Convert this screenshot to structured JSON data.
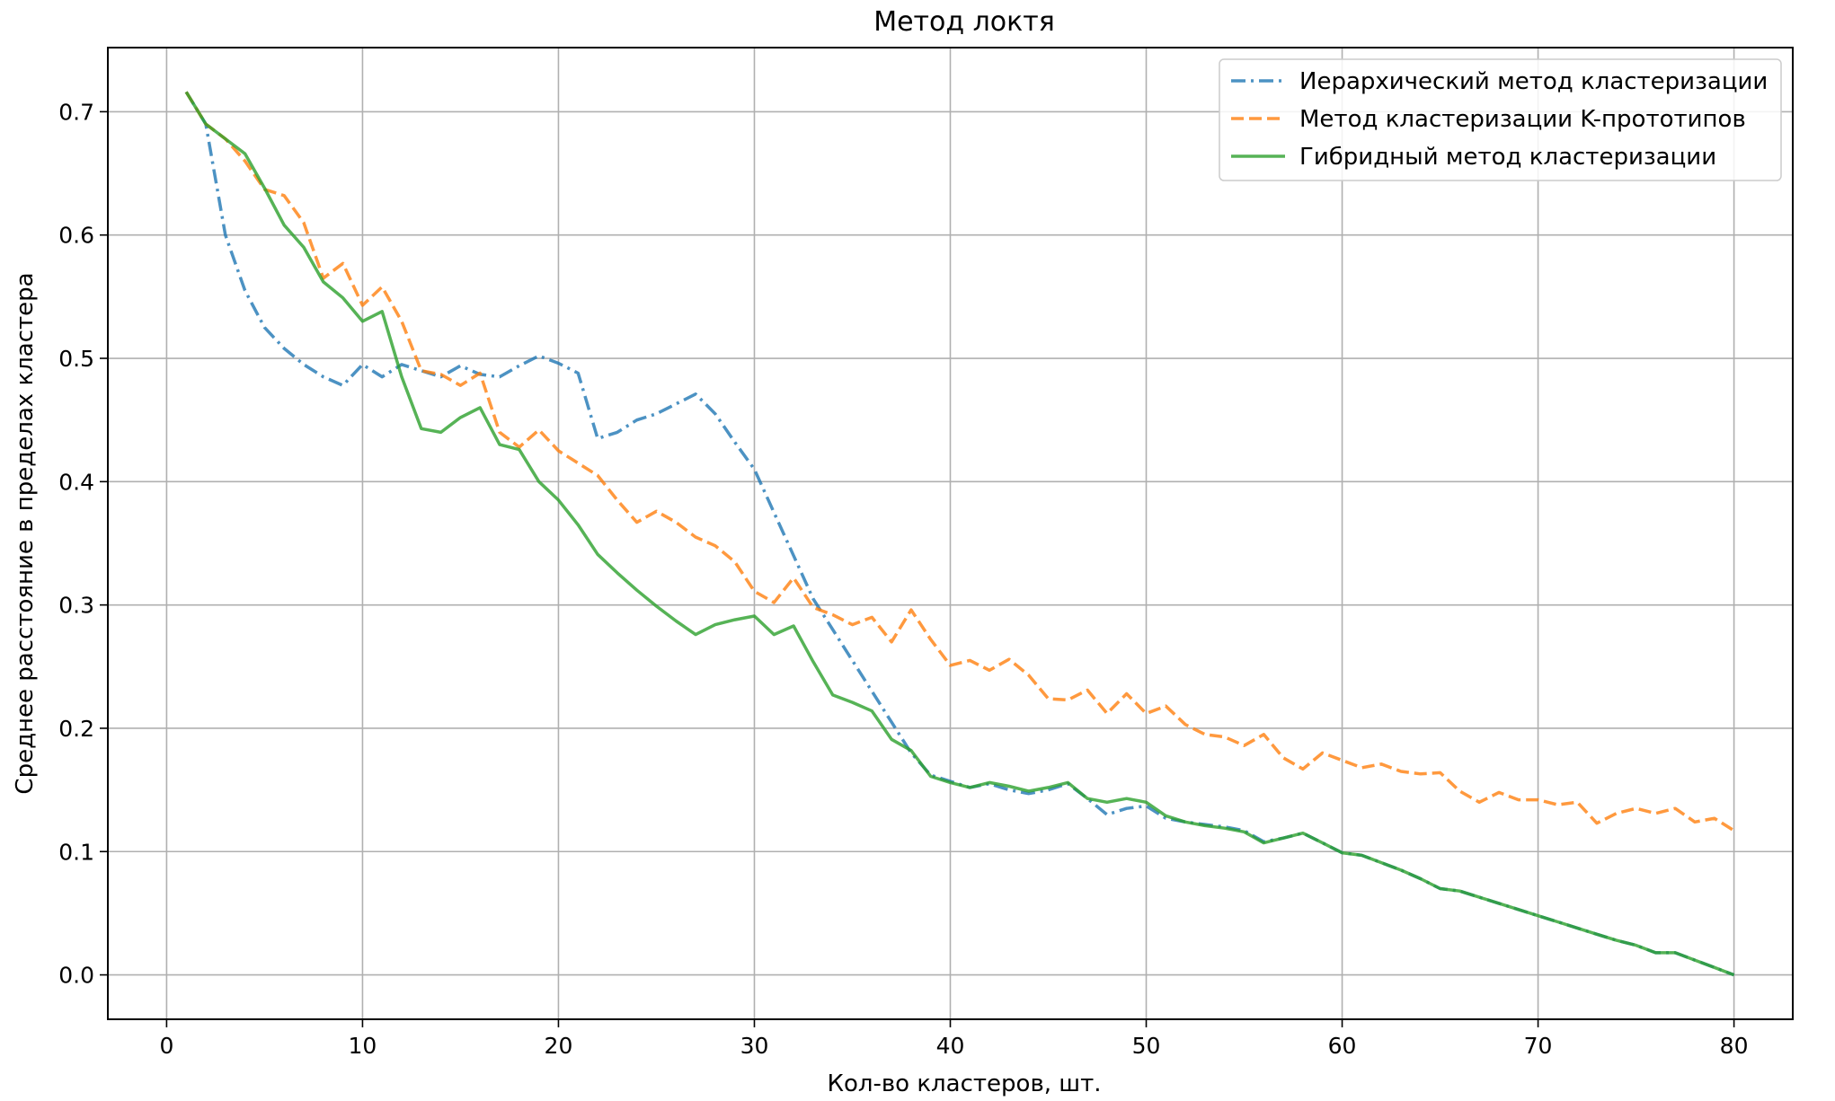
{
  "chart_data": {
    "type": "line",
    "title": "Метод локтя",
    "xlabel": "Кол-во кластеров, шт.",
    "ylabel": "Среднее расстояние в пределах кластера",
    "xlim": [
      -3,
      83
    ],
    "ylim": [
      -0.036,
      0.752
    ],
    "xticks": [
      0,
      10,
      20,
      30,
      40,
      50,
      60,
      70,
      80
    ],
    "yticks": [
      0.0,
      0.1,
      0.2,
      0.3,
      0.4,
      0.5,
      0.6,
      0.7
    ],
    "grid": true,
    "legend_position": "top-right",
    "series": [
      {
        "name": "Иерархический метод кластеризации",
        "color": "#1f77b4",
        "style": "dashdot",
        "x": [
          1,
          2,
          3,
          4,
          5,
          6,
          7,
          8,
          9,
          10,
          11,
          12,
          13,
          14,
          15,
          16,
          17,
          18,
          19,
          20,
          21,
          22,
          23,
          24,
          25,
          26,
          27,
          28,
          29,
          30,
          31,
          32,
          33,
          34,
          35,
          36,
          37,
          38,
          39,
          40,
          41,
          42,
          43,
          44,
          45,
          46,
          47,
          48,
          49,
          50,
          51,
          52,
          53,
          54,
          55,
          56,
          57,
          58,
          59,
          60,
          61,
          62,
          63,
          64,
          65,
          66,
          67,
          68,
          69,
          70,
          71,
          72,
          73,
          74,
          75,
          76,
          77,
          78,
          79,
          80
        ],
        "values": [
          0.716,
          0.69,
          0.6,
          0.555,
          0.525,
          0.508,
          0.495,
          0.485,
          0.478,
          0.495,
          0.485,
          0.495,
          0.49,
          0.485,
          0.494,
          0.487,
          0.485,
          0.494,
          0.502,
          0.496,
          0.488,
          0.435,
          0.44,
          0.45,
          0.455,
          0.463,
          0.471,
          0.455,
          0.432,
          0.41,
          0.375,
          0.34,
          0.305,
          0.28,
          0.255,
          0.23,
          0.205,
          0.18,
          0.162,
          0.157,
          0.152,
          0.155,
          0.15,
          0.147,
          0.15,
          0.155,
          0.143,
          0.13,
          0.135,
          0.137,
          0.127,
          0.124,
          0.122,
          0.12,
          0.117,
          0.108,
          0.111,
          0.115,
          0.107,
          0.099,
          0.097,
          0.091,
          0.085,
          0.078,
          0.07,
          0.068,
          0.063,
          0.058,
          0.053,
          0.048,
          0.043,
          0.038,
          0.033,
          0.028,
          0.024,
          0.018,
          0.018,
          0.012,
          0.006,
          0.0
        ]
      },
      {
        "name": "Метод кластеризации K-прототипов",
        "color": "#ff7f0e",
        "style": "dashed",
        "x": [
          1,
          2,
          3,
          4,
          5,
          6,
          7,
          8,
          9,
          10,
          11,
          12,
          13,
          14,
          15,
          16,
          17,
          18,
          19,
          20,
          21,
          22,
          23,
          24,
          25,
          26,
          27,
          28,
          29,
          30,
          31,
          32,
          33,
          34,
          35,
          36,
          37,
          38,
          39,
          40,
          41,
          42,
          43,
          44,
          45,
          46,
          47,
          48,
          49,
          50,
          51,
          52,
          53,
          54,
          55,
          56,
          57,
          58,
          59,
          60,
          61,
          62,
          63,
          64,
          65,
          66,
          67,
          68,
          69,
          70,
          71,
          72,
          73,
          74,
          75,
          76,
          77,
          78,
          79,
          80
        ],
        "values": [
          0.716,
          0.69,
          0.678,
          0.66,
          0.637,
          0.632,
          0.61,
          0.565,
          0.577,
          0.543,
          0.558,
          0.53,
          0.49,
          0.487,
          0.478,
          0.488,
          0.44,
          0.428,
          0.442,
          0.425,
          0.415,
          0.405,
          0.385,
          0.367,
          0.376,
          0.367,
          0.355,
          0.348,
          0.335,
          0.311,
          0.302,
          0.322,
          0.298,
          0.292,
          0.284,
          0.29,
          0.27,
          0.296,
          0.272,
          0.251,
          0.255,
          0.247,
          0.256,
          0.243,
          0.224,
          0.223,
          0.231,
          0.212,
          0.228,
          0.212,
          0.218,
          0.203,
          0.195,
          0.193,
          0.186,
          0.195,
          0.176,
          0.167,
          0.18,
          0.174,
          0.168,
          0.171,
          0.165,
          0.163,
          0.164,
          0.149,
          0.14,
          0.148,
          0.142,
          0.142,
          0.138,
          0.14,
          0.123,
          0.131,
          0.135,
          0.131,
          0.135,
          0.124,
          0.127,
          0.117
        ]
      },
      {
        "name": "Гибридный метод кластеризации",
        "color": "#2ca02c",
        "style": "solid",
        "x": [
          1,
          2,
          3,
          4,
          5,
          6,
          7,
          8,
          9,
          10,
          11,
          12,
          13,
          14,
          15,
          16,
          17,
          18,
          19,
          20,
          21,
          22,
          23,
          24,
          25,
          26,
          27,
          28,
          29,
          30,
          31,
          32,
          33,
          34,
          35,
          36,
          37,
          38,
          39,
          40,
          41,
          42,
          43,
          44,
          45,
          46,
          47,
          48,
          49,
          50,
          51,
          52,
          53,
          54,
          55,
          56,
          57,
          58,
          59,
          60,
          61,
          62,
          63,
          64,
          65,
          66,
          67,
          68,
          69,
          70,
          71,
          72,
          73,
          74,
          75,
          76,
          77,
          78,
          79,
          80
        ],
        "values": [
          0.716,
          0.69,
          0.678,
          0.666,
          0.638,
          0.608,
          0.59,
          0.562,
          0.549,
          0.53,
          0.538,
          0.485,
          0.443,
          0.44,
          0.452,
          0.46,
          0.43,
          0.426,
          0.4,
          0.385,
          0.365,
          0.341,
          0.326,
          0.312,
          0.299,
          0.287,
          0.276,
          0.284,
          0.288,
          0.291,
          0.276,
          0.283,
          0.254,
          0.227,
          0.221,
          0.214,
          0.191,
          0.182,
          0.161,
          0.156,
          0.152,
          0.156,
          0.153,
          0.149,
          0.152,
          0.156,
          0.143,
          0.14,
          0.143,
          0.14,
          0.129,
          0.124,
          0.121,
          0.119,
          0.116,
          0.107,
          0.111,
          0.115,
          0.107,
          0.099,
          0.097,
          0.091,
          0.085,
          0.078,
          0.07,
          0.068,
          0.063,
          0.058,
          0.053,
          0.048,
          0.043,
          0.038,
          0.033,
          0.028,
          0.024,
          0.018,
          0.018,
          0.012,
          0.006,
          0.0
        ]
      }
    ]
  }
}
